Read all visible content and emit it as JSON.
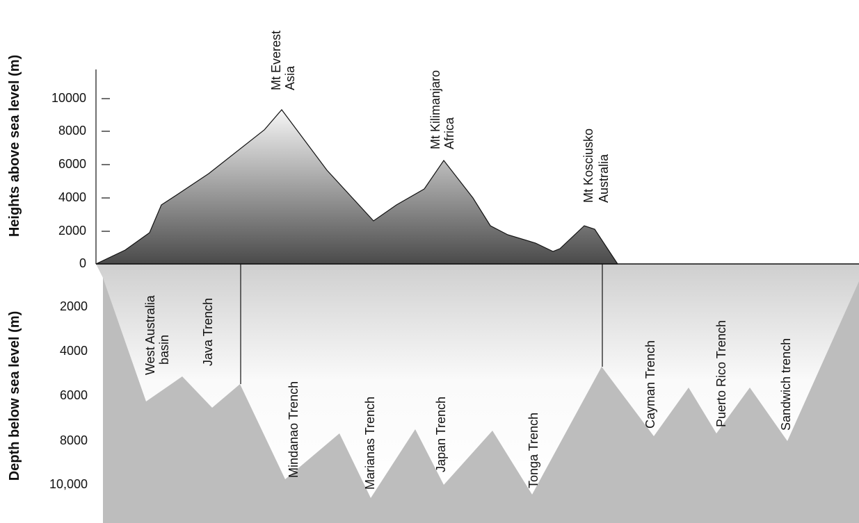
{
  "axes": {
    "upper_title": "Heights above sea level (m)",
    "lower_title": "Depth below sea level (m)",
    "upper_ticks": [
      "10000",
      "8000",
      "6000",
      "4000",
      "2000",
      "0"
    ],
    "lower_ticks": [
      "2000",
      "4000",
      "6000",
      "8000",
      "10,000"
    ]
  },
  "peaks": [
    {
      "name": "Mt Everest",
      "region": "Asia"
    },
    {
      "name": "Mt Kilimanjaro",
      "region": "Africa"
    },
    {
      "name": "Mt Kosciusko",
      "region": "Australia"
    }
  ],
  "trenches": [
    "West Australia",
    "basin",
    "Java Trench",
    "Mindanao Trench",
    "Marianas Trench",
    "Japan Trench",
    "Tonga Trench",
    "Cayman Trench",
    "Puerto Rico Trench",
    "Sandwich trench"
  ]
}
